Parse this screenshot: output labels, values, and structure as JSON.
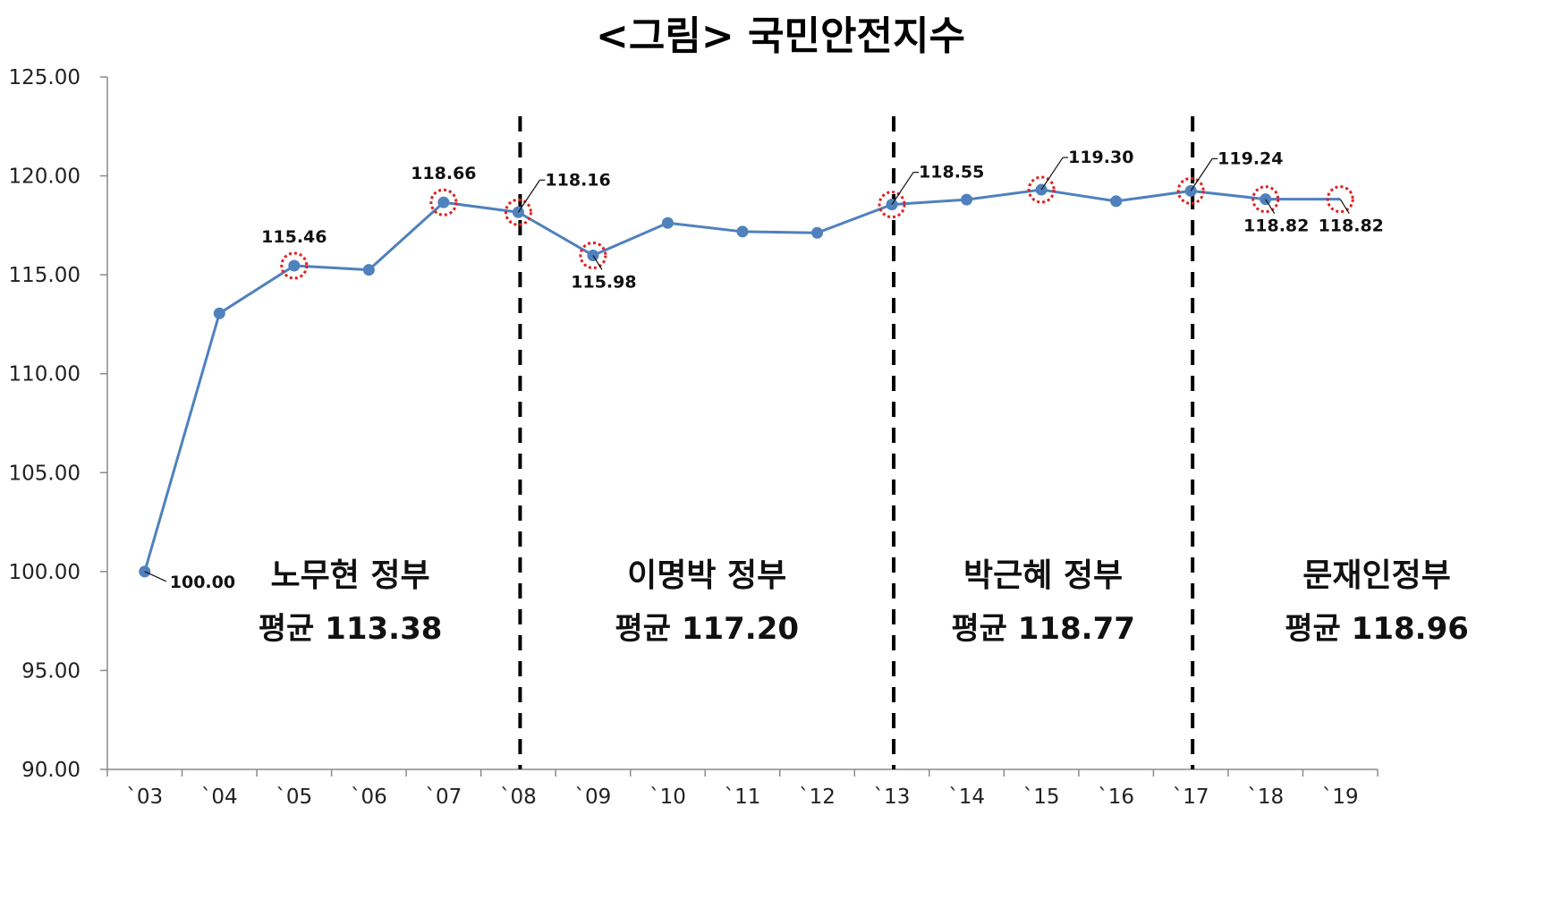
{
  "chart_data": {
    "type": "line",
    "title": "<그림> 국민안전지수",
    "xlabel": "",
    "ylabel": "",
    "categories": [
      "`03",
      "`04",
      "`05",
      "`06",
      "`07",
      "`08",
      "`09",
      "`10",
      "`11",
      "`12",
      "`13",
      "`14",
      "`15",
      "`16",
      "`17",
      "`18",
      "`19"
    ],
    "series": [
      {
        "values": [
          100.0,
          113.05,
          115.46,
          115.25,
          118.66,
          118.16,
          115.98,
          117.62,
          117.18,
          117.12,
          118.55,
          118.8,
          119.3,
          118.72,
          119.24,
          118.82,
          118.82
        ]
      }
    ],
    "ylim": [
      90,
      125
    ],
    "yticks": [
      "90.00",
      "95.00",
      "100.00",
      "105.00",
      "110.00",
      "115.00",
      "120.00",
      "125.00"
    ],
    "ytick_values": [
      90,
      95,
      100,
      105,
      110,
      115,
      120,
      125
    ],
    "grid": false,
    "line_color": "#4f81bd",
    "highlight_color": "#e02020",
    "highlighted_points": [
      2,
      4,
      5,
      6,
      10,
      12,
      14,
      15,
      16
    ],
    "annotations": [
      {
        "index": 0,
        "text": "100.00",
        "pos": "right-below"
      },
      {
        "index": 2,
        "text": "115.46",
        "pos": "above"
      },
      {
        "index": 4,
        "text": "118.66",
        "pos": "above"
      },
      {
        "index": 5,
        "text": "118.16",
        "pos": "upper-right"
      },
      {
        "index": 6,
        "text": "115.98",
        "pos": "below"
      },
      {
        "index": 10,
        "text": "118.55",
        "pos": "upper-right"
      },
      {
        "index": 12,
        "text": "119.30",
        "pos": "upper-right"
      },
      {
        "index": 14,
        "text": "119.24",
        "pos": "upper-right"
      },
      {
        "index": 15,
        "text": "118.82",
        "pos": "below"
      },
      {
        "index": 16,
        "text": "118.82",
        "pos": "below"
      }
    ],
    "dividers_after_index": [
      5,
      10,
      14
    ],
    "divider_color": "#000000",
    "eras": [
      {
        "name": "노무현 정부",
        "avg": "평균 113.38"
      },
      {
        "name": "이명박 정부",
        "avg": "평균 117.20"
      },
      {
        "name": "박근혜 정부",
        "avg": "평균 118.77"
      },
      {
        "name": "문재인정부",
        "avg": "평균 118.96"
      }
    ]
  }
}
